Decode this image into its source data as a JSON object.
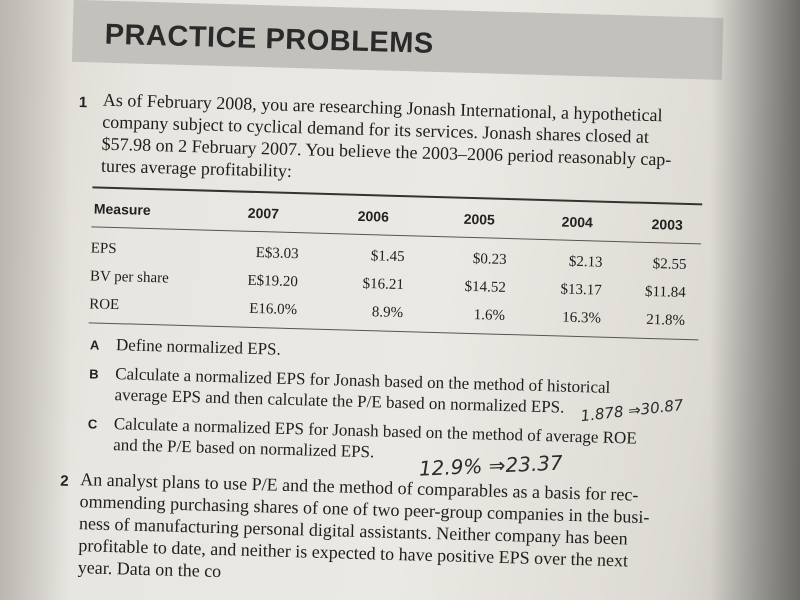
{
  "header": {
    "title": "PRACTICE PROBLEMS"
  },
  "problem1": {
    "number": "1",
    "lines": [
      "As of February 2008, you are researching Jonash International, a hypothetical",
      "company subject to cyclical demand for its services. Jonash shares closed at",
      "$57.98 on 2 February 2007. You believe the 2003–2006 period reasonably cap-",
      "tures average profitability:"
    ]
  },
  "table": {
    "headers": [
      "Measure",
      "2007",
      "2006",
      "2005",
      "2004",
      "2003"
    ],
    "rows": [
      [
        "EPS",
        "E$3.03",
        "$1.45",
        "$0.23",
        "$2.13",
        "$2.55"
      ],
      [
        "BV per share",
        "E$19.20",
        "$16.21",
        "$14.52",
        "$13.17",
        "$11.84"
      ],
      [
        "ROE",
        "E16.0%",
        "8.9%",
        "1.6%",
        "16.3%",
        "21.8%"
      ]
    ]
  },
  "subquestions": [
    {
      "letter": "A",
      "lines": [
        "Define normalized EPS."
      ]
    },
    {
      "letter": "B",
      "lines": [
        "Calculate a normalized EPS for Jonash based on the method of historical",
        "average EPS and then calculate the P/E based on normalized EPS."
      ]
    },
    {
      "letter": "C",
      "lines": [
        "Calculate a normalized EPS for Jonash based on the method of average ROE",
        "and the P/E based on normalized EPS."
      ]
    }
  ],
  "handwriting": {
    "b_note": "1.878 ⇒30.87",
    "c_note": "12.9%  ⇒23.37"
  },
  "problem2": {
    "number": "2",
    "lines": [
      "An analyst plans to use P/E and the method of comparables as a basis for rec-",
      "ommending purchasing shares of one of two peer-group companies in the busi-",
      "ness of manufacturing personal digital assistants. Neither company has been",
      "profitable to date, and neither is expected to have positive EPS over the next",
      "year. Data on the co"
    ]
  }
}
